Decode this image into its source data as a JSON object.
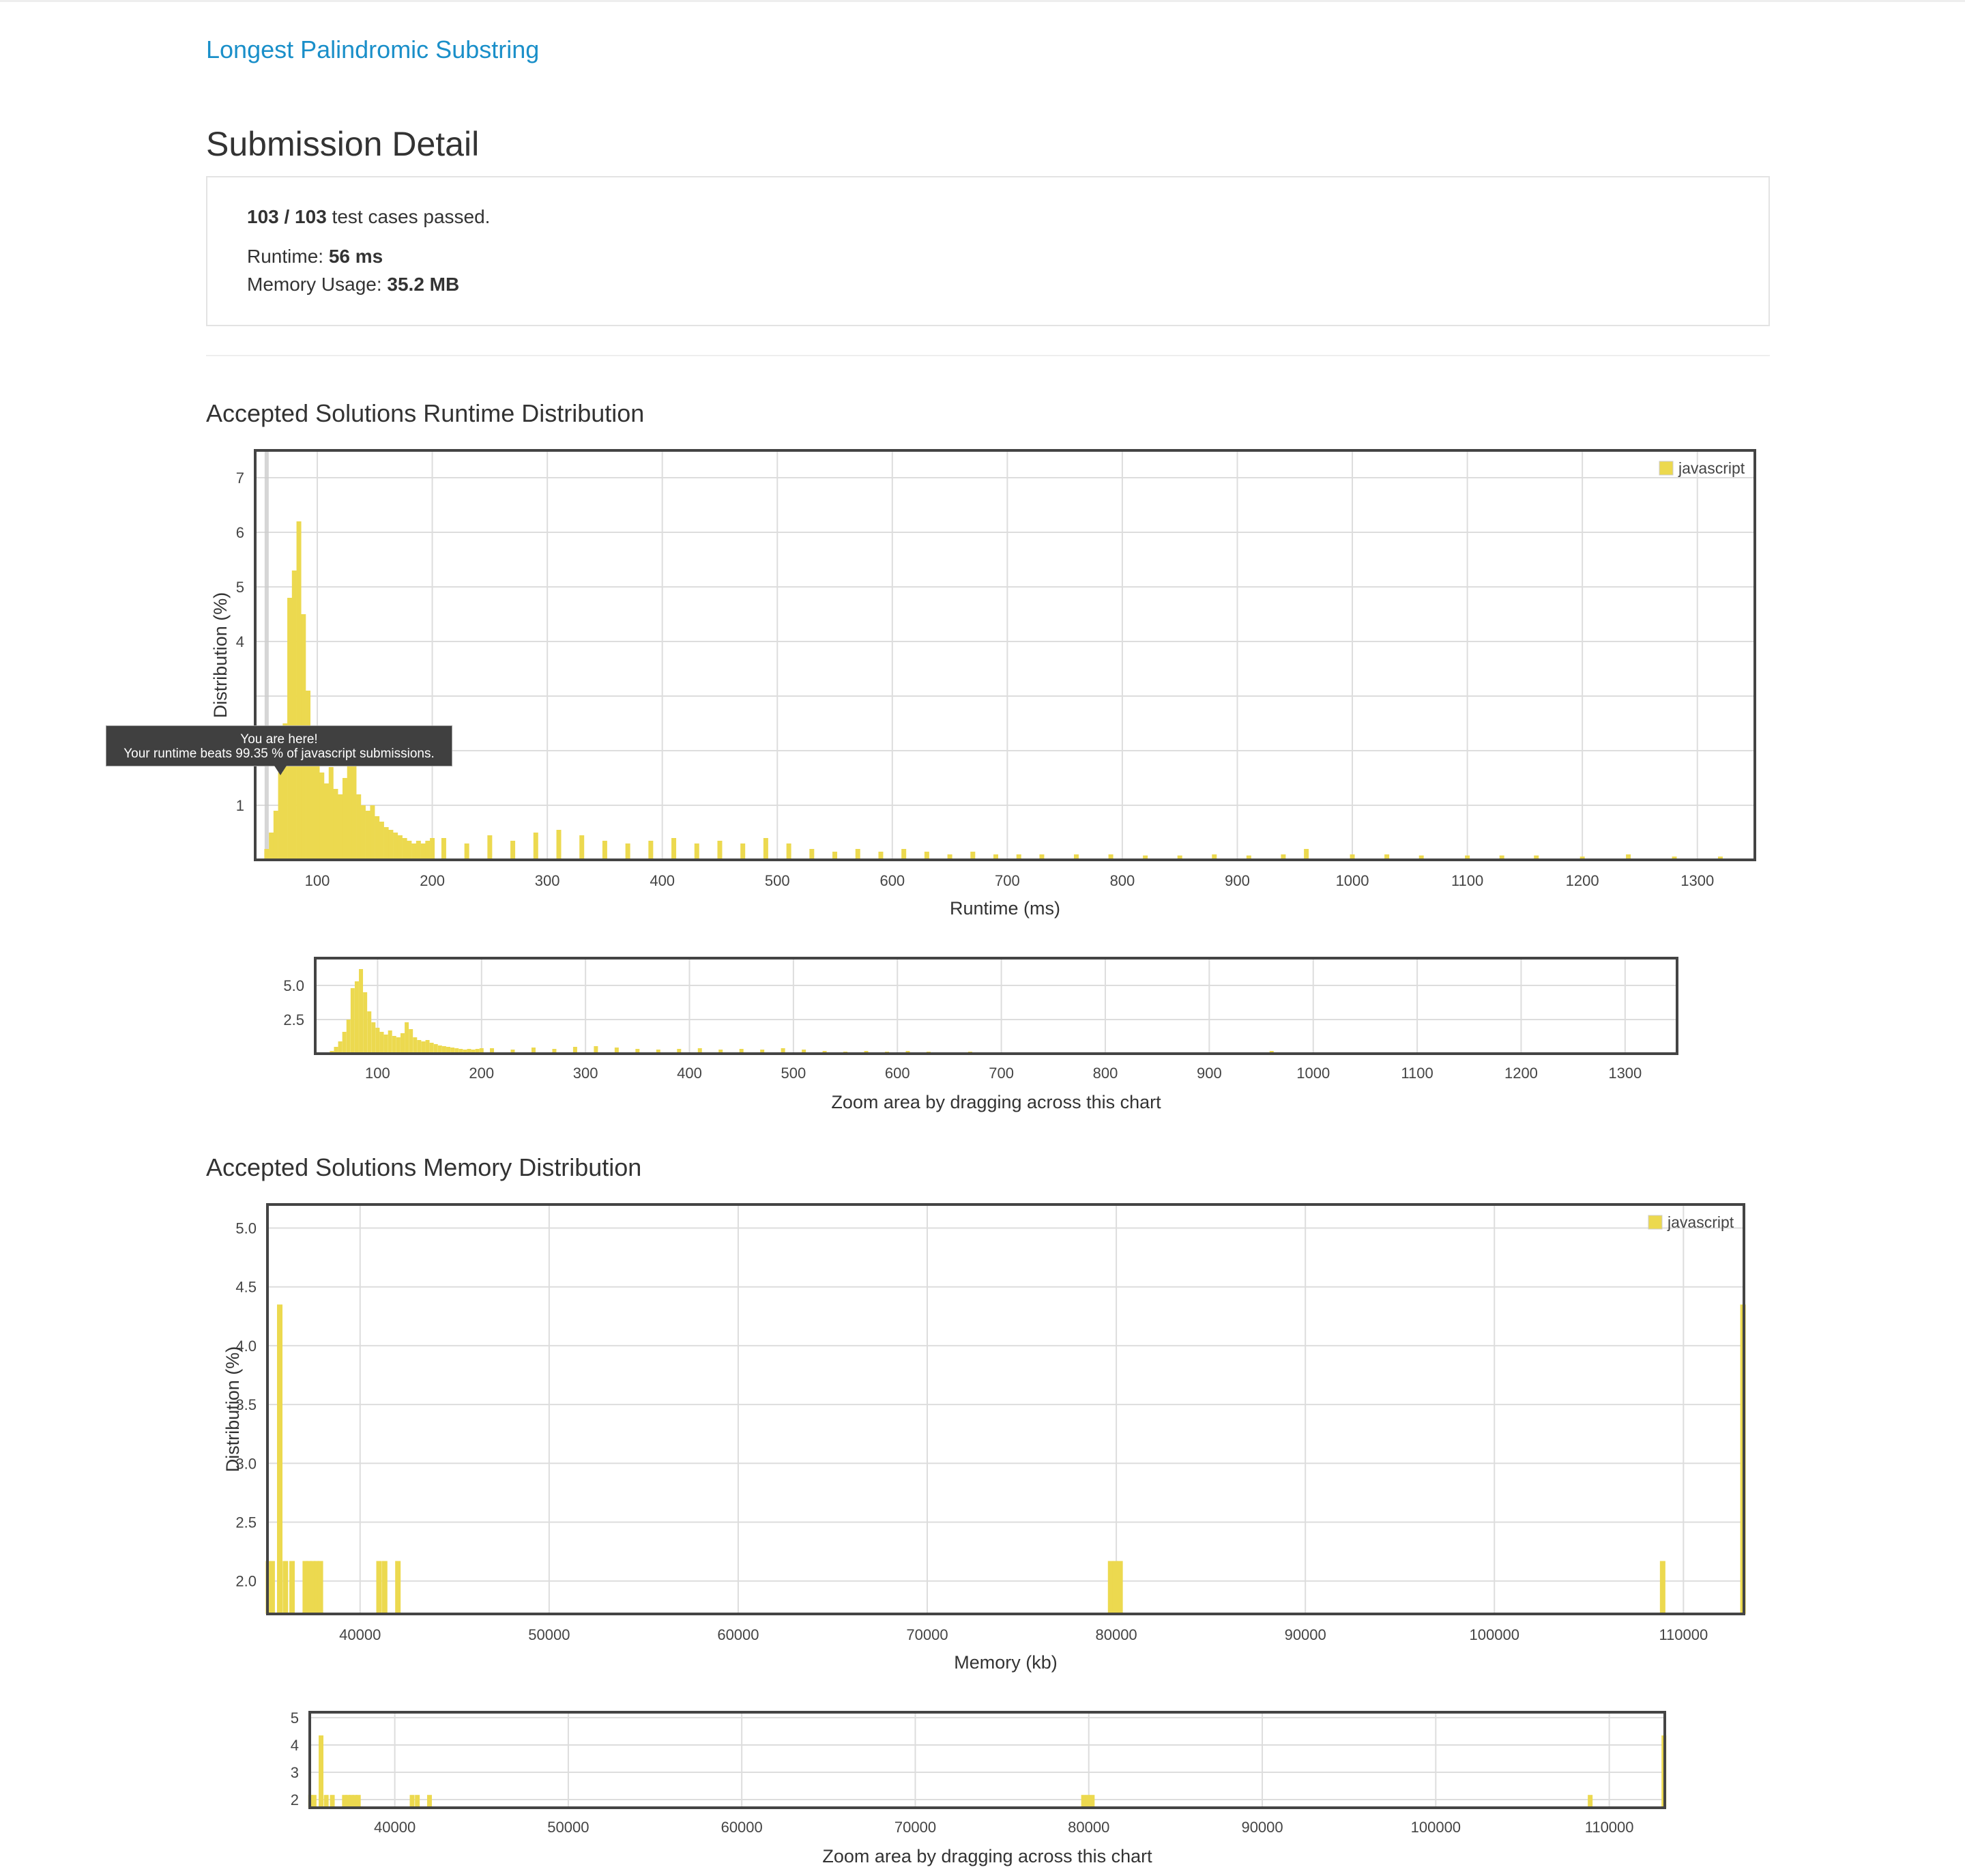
{
  "problem": {
    "title": "Longest Palindromic Substring"
  },
  "page": {
    "title": "Submission Detail"
  },
  "result": {
    "passed": "103 / 103",
    "passed_suffix": " test cases passed.",
    "runtime_label": "Runtime: ",
    "runtime_value": "56 ms",
    "memory_label": "Memory Usage: ",
    "memory_value": "35.2 MB"
  },
  "runtime_section": {
    "title": "Accepted Solutions Runtime Distribution"
  },
  "memory_section": {
    "title": "Accepted Solutions Memory Distribution"
  },
  "tooltip": {
    "title": "You are here!",
    "text": "Your runtime beats 99.35 % of javascript submissions."
  },
  "zoom_hint": "Zoom area by dragging across this chart",
  "colors": {
    "bar": "#ecd94f",
    "link": "#1a8fc9",
    "frame": "#444444",
    "grid": "#dddddd"
  },
  "chart_data": [
    {
      "id": "runtime-main",
      "type": "bar",
      "title": "",
      "xlabel": "Runtime (ms)",
      "ylabel": "Distribution (%)",
      "xlim": [
        46,
        1350
      ],
      "ylim": [
        0,
        7.5
      ],
      "x_ticks": [
        100,
        200,
        300,
        400,
        500,
        600,
        700,
        800,
        900,
        1000,
        1100,
        1200,
        1300
      ],
      "y_ticks": [
        1,
        2,
        3,
        4,
        5,
        6,
        7
      ],
      "y_tick_labels": [
        "1",
        "",
        "",
        "4",
        "5",
        "6",
        "7"
      ],
      "grid": true,
      "legend": {
        "position": "top-right",
        "entries": [
          "javascript"
        ]
      },
      "marker_x": 56,
      "series": [
        {
          "name": "javascript",
          "x": [
            56,
            60,
            64,
            68,
            72,
            76,
            80,
            84,
            88,
            92,
            96,
            100,
            104,
            108,
            112,
            116,
            120,
            124,
            128,
            132,
            136,
            140,
            144,
            148,
            152,
            156,
            160,
            164,
            168,
            172,
            176,
            180,
            184,
            188,
            192,
            196,
            200
          ],
          "values": [
            0.2,
            0.5,
            0.9,
            1.6,
            2.5,
            4.8,
            5.3,
            6.2,
            4.5,
            3.1,
            2.3,
            1.9,
            1.6,
            1.4,
            1.7,
            1.3,
            1.2,
            1.5,
            2.3,
            1.8,
            1.2,
            1.0,
            0.9,
            1.0,
            0.8,
            0.7,
            0.6,
            0.55,
            0.5,
            0.45,
            0.4,
            0.35,
            0.3,
            0.35,
            0.3,
            0.35,
            0.4
          ]
        }
      ],
      "tail": {
        "note": "sparse low bars 200-1350 ms",
        "x": [
          210,
          230,
          250,
          270,
          290,
          310,
          330,
          350,
          370,
          390,
          410,
          430,
          450,
          470,
          490,
          510,
          530,
          550,
          570,
          590,
          610,
          630,
          650,
          670,
          690,
          710,
          730,
          760,
          790,
          820,
          850,
          880,
          910,
          940,
          960,
          1000,
          1030,
          1060,
          1100,
          1130,
          1160,
          1200,
          1240,
          1280,
          1320
        ],
        "values": [
          0.4,
          0.3,
          0.45,
          0.35,
          0.5,
          0.55,
          0.45,
          0.35,
          0.3,
          0.35,
          0.4,
          0.3,
          0.35,
          0.3,
          0.4,
          0.3,
          0.2,
          0.15,
          0.2,
          0.15,
          0.2,
          0.15,
          0.1,
          0.15,
          0.1,
          0.1,
          0.1,
          0.1,
          0.1,
          0.08,
          0.08,
          0.1,
          0.08,
          0.1,
          0.2,
          0.1,
          0.1,
          0.08,
          0.08,
          0.08,
          0.08,
          0.06,
          0.1,
          0.06,
          0.06
        ]
      }
    },
    {
      "id": "runtime-zoom",
      "type": "bar",
      "title": "",
      "xlabel": "",
      "ylim": [
        0,
        7
      ],
      "xlim": [
        40,
        1350
      ],
      "x_ticks": [
        100,
        200,
        300,
        400,
        500,
        600,
        700,
        800,
        900,
        1000,
        1100,
        1200,
        1300
      ],
      "y_ticks": [
        2.5,
        5.0
      ],
      "y_tick_labels": [
        "2.5",
        "5.0"
      ]
    },
    {
      "id": "memory-main",
      "type": "bar",
      "title": "",
      "xlabel": "Memory (kb)",
      "ylabel": "Distribution (%)",
      "xlim": [
        35100,
        113200
      ],
      "ylim": [
        1.72,
        5.2
      ],
      "x_ticks": [
        40000,
        50000,
        60000,
        70000,
        80000,
        90000,
        100000,
        110000
      ],
      "y_ticks": [
        2.0,
        2.5,
        3.0,
        3.5,
        4.0,
        4.5,
        5.0
      ],
      "y_tick_labels": [
        "2.0",
        "2.5",
        "3.0",
        "3.5",
        "4.0",
        "4.5",
        "5.0"
      ],
      "grid": true,
      "legend": {
        "position": "top-right",
        "entries": [
          "javascript"
        ]
      },
      "series": [
        {
          "name": "javascript",
          "x": [
            35150,
            35350,
            35750,
            36050,
            36400,
            37100,
            37300,
            37500,
            37700,
            37900,
            41000,
            41300,
            42000,
            79700,
            79950,
            80200,
            108900,
            113150
          ],
          "values": [
            2.17,
            2.17,
            4.35,
            2.17,
            2.17,
            2.17,
            2.17,
            2.17,
            2.17,
            2.17,
            2.17,
            2.17,
            2.17,
            2.17,
            2.17,
            2.17,
            2.17,
            4.35
          ]
        }
      ]
    },
    {
      "id": "memory-zoom",
      "type": "bar",
      "title": "",
      "xlabel": "",
      "xlim": [
        35100,
        113200
      ],
      "ylim": [
        1.7,
        5.2
      ],
      "x_ticks": [
        40000,
        50000,
        60000,
        70000,
        80000,
        90000,
        100000,
        110000
      ],
      "y_ticks": [
        2,
        3,
        4,
        5
      ],
      "y_tick_labels": [
        "2",
        "3",
        "4",
        "5"
      ]
    }
  ]
}
